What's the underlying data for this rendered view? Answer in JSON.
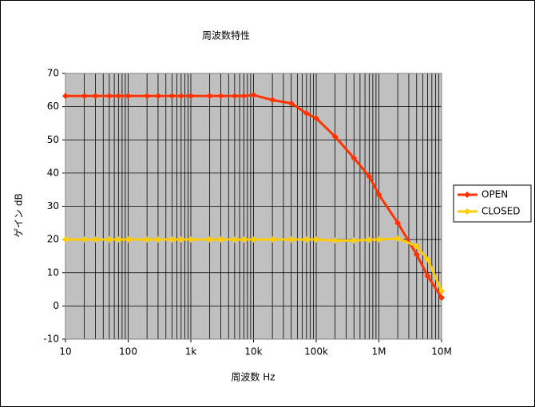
{
  "chart_data": {
    "type": "line",
    "title": "周波数特性",
    "xlabel": "周波数 Hz",
    "ylabel": "ゲイン dB",
    "x": [
      10,
      20,
      30,
      50,
      70,
      100,
      200,
      300,
      500,
      700,
      1000,
      2000,
      3000,
      5000,
      7000,
      10000,
      20000,
      40000,
      70000,
      100000,
      200000,
      400000,
      700000,
      1000000,
      2000000,
      4000000,
      6000000,
      10000000
    ],
    "series": [
      {
        "name": "OPEN",
        "color": "#ff3300",
        "values": [
          63.2,
          63.2,
          63.2,
          63.2,
          63.2,
          63.2,
          63.2,
          63.2,
          63.2,
          63.2,
          63.2,
          63.2,
          63.2,
          63.2,
          63.2,
          63.5,
          62,
          61,
          58,
          56.5,
          51,
          44.5,
          39,
          33.5,
          25,
          15.5,
          9,
          2.5
        ]
      },
      {
        "name": "CLOSED",
        "color": "#ffcc00",
        "values": [
          20,
          20,
          20,
          20,
          20,
          20,
          20,
          20,
          20,
          20,
          20,
          20,
          20,
          20,
          20,
          20,
          20,
          20,
          20,
          20,
          19.7,
          19.7,
          19.9,
          20,
          20.3,
          18,
          14,
          4.5
        ]
      }
    ],
    "xscale": "log",
    "xlim": [
      10,
      10000000
    ],
    "xticks": [
      10,
      100,
      {
        "value": 1000,
        "label": "1k"
      },
      {
        "value": 10000,
        "label": "10k"
      },
      {
        "value": 100000,
        "label": "100k"
      },
      {
        "value": 1000000,
        "label": "1M"
      },
      {
        "value": 10000000,
        "label": "10M"
      }
    ],
    "ylim": [
      -10,
      70
    ],
    "yticks": [
      -10,
      0,
      10,
      20,
      30,
      40,
      50,
      60,
      70
    ],
    "grid": true,
    "legend": "right"
  }
}
